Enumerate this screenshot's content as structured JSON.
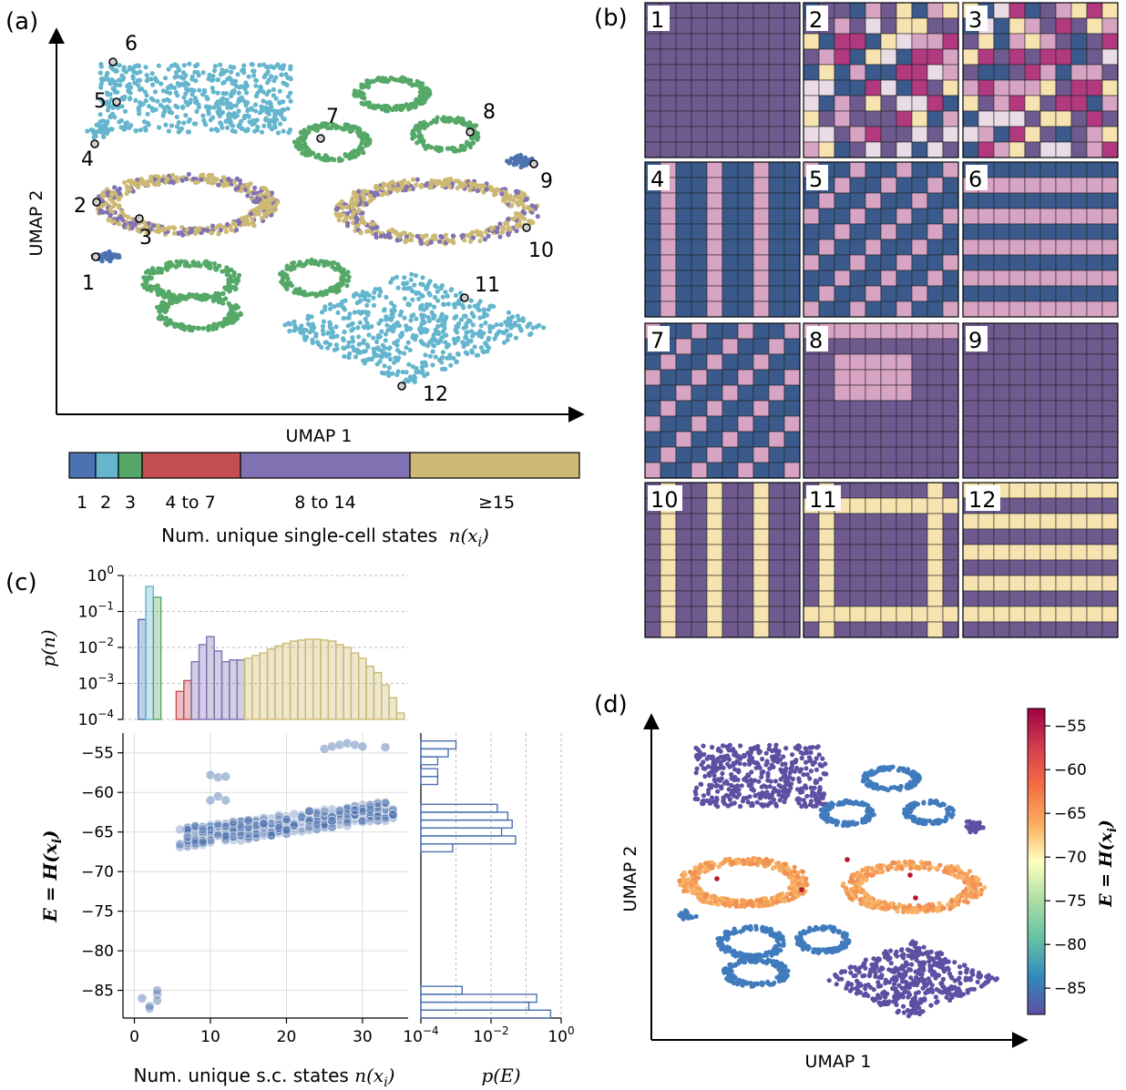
{
  "panels": {
    "a": {
      "label": "(a)",
      "xlabel": "UMAP 1",
      "ylabel": "UMAP 2",
      "markers": [
        "1",
        "2",
        "3",
        "4",
        "5",
        "6",
        "7",
        "8",
        "9",
        "10",
        "11",
        "12"
      ]
    },
    "b": {
      "label": "(b)",
      "tile_numbers": [
        "1",
        "2",
        "3",
        "4",
        "5",
        "6",
        "7",
        "8",
        "9",
        "10",
        "11",
        "12"
      ]
    },
    "c": {
      "label": "(c)"
    },
    "d": {
      "label": "(d)",
      "xlabel": "UMAP 1",
      "ylabel": "UMAP 2"
    }
  },
  "colors": {
    "n1": "#4c72b0",
    "n2": "#64b5cd",
    "n3": "#55a868",
    "n4to7": "#c44e52",
    "n8to14": "#8172b3",
    "n15plus": "#ccb974",
    "tile_dark_blue": "#3a5a8c",
    "tile_purple": "#6e5a8e",
    "tile_pink": "#d8a4c4",
    "tile_cream": "#f7e3b0"
  },
  "legend": {
    "categories": [
      "1",
      "2",
      "3",
      "4 to 7",
      "8 to 14",
      "≥15"
    ],
    "title_text": "Num. unique single-cell states",
    "title_math": "n(x",
    "title_sub": "i",
    "title_close": ")"
  },
  "chart_data": [
    {
      "type": "scatter",
      "panel": "a",
      "xlabel": "UMAP 1",
      "ylabel": "UMAP 2",
      "legend": "bottom",
      "grid": false,
      "annotations": [
        "1",
        "2",
        "3",
        "4",
        "5",
        "6",
        "7",
        "8",
        "9",
        "10",
        "11",
        "12"
      ]
    },
    {
      "type": "bar",
      "panel": "c-top",
      "ylabel": "p(n)",
      "yscale": "log",
      "ylim": [
        0.0001,
        1
      ],
      "yticks": [
        "10^0",
        "10^-1",
        "10^-2",
        "10^-3",
        "10^-4"
      ],
      "x": [
        1,
        2,
        3,
        6,
        7,
        8,
        9,
        10,
        11,
        12,
        13,
        14,
        15,
        16,
        17,
        18,
        19,
        20,
        21,
        22,
        23,
        24,
        25,
        26,
        27,
        28,
        29,
        30,
        31,
        32,
        33,
        34,
        35
      ],
      "values": [
        0.06,
        0.5,
        0.25,
        0.0006,
        0.0012,
        0.004,
        0.012,
        0.02,
        0.008,
        0.004,
        0.0045,
        0.0045,
        0.005,
        0.006,
        0.007,
        0.009,
        0.011,
        0.013,
        0.015,
        0.016,
        0.017,
        0.017,
        0.016,
        0.015,
        0.012,
        0.01,
        0.007,
        0.005,
        0.003,
        0.002,
        0.0009,
        0.0004,
        0.00015
      ]
    },
    {
      "type": "scatter",
      "panel": "c-main",
      "xlabel": "Num. unique s.c. states",
      "xlabel_math": "n(x",
      "xlabel_sub": "i",
      "ylabel_math": "E = H(x",
      "ylabel_sub": "i",
      "xlim": [
        -1.5,
        36
      ],
      "ylim": [
        -88.5,
        -52.5
      ],
      "xticks": [
        "0",
        "10",
        "20",
        "30"
      ],
      "yticks": [
        "-55",
        "-60",
        "-65",
        "-70",
        "-75",
        "-80",
        "-85"
      ],
      "grid": true,
      "points": [
        [
          1,
          -86
        ],
        [
          2,
          -87.3
        ],
        [
          2,
          -87
        ],
        [
          3,
          -85.5
        ],
        [
          3,
          -86.3
        ],
        [
          3,
          -85
        ],
        [
          10,
          -57.8
        ],
        [
          11,
          -58.1
        ],
        [
          12,
          -58
        ],
        [
          10,
          -61
        ],
        [
          11,
          -60.5
        ],
        [
          12,
          -61
        ],
        [
          25,
          -54.5
        ],
        [
          26,
          -54.2
        ],
        [
          27,
          -54
        ],
        [
          28,
          -53.8
        ],
        [
          29,
          -54
        ],
        [
          30,
          -54.2
        ],
        [
          33,
          -54.3
        ]
      ],
      "band": {
        "x_start": 6,
        "x_end": 34,
        "y_low_start": -67,
        "y_high_start": -64.5,
        "y_low_end": -63.5,
        "y_high_end": -61
      }
    },
    {
      "type": "bar",
      "panel": "c-right",
      "orientation": "horizontal",
      "xlabel": "p(E)",
      "xscale": "log",
      "xlim": [
        0.0001,
        1
      ],
      "xticks": [
        "10^-4",
        "10^-2",
        "10^0"
      ],
      "bins_E": [
        -54,
        -55,
        -56,
        -57.5,
        -58.5,
        -62,
        -63,
        -64,
        -65,
        -66,
        -67,
        -85,
        -86,
        -87,
        -88
      ],
      "values": [
        0.001,
        0.0006,
        0.0003,
        0.0003,
        0.0003,
        0.015,
        0.03,
        0.04,
        0.02,
        0.05,
        0.0008,
        0.0015,
        0.2,
        0.12,
        0.5
      ]
    },
    {
      "type": "scatter",
      "panel": "d",
      "xlabel": "UMAP 1",
      "ylabel": "UMAP 2",
      "colorbar_ticks": [
        "-55",
        "-60",
        "-65",
        "-70",
        "-75",
        "-80",
        "-85"
      ],
      "colorbar_label_math": "E = H(x",
      "colorbar_label_sub": "i",
      "colorbar_range": [
        -88,
        -53
      ]
    }
  ]
}
